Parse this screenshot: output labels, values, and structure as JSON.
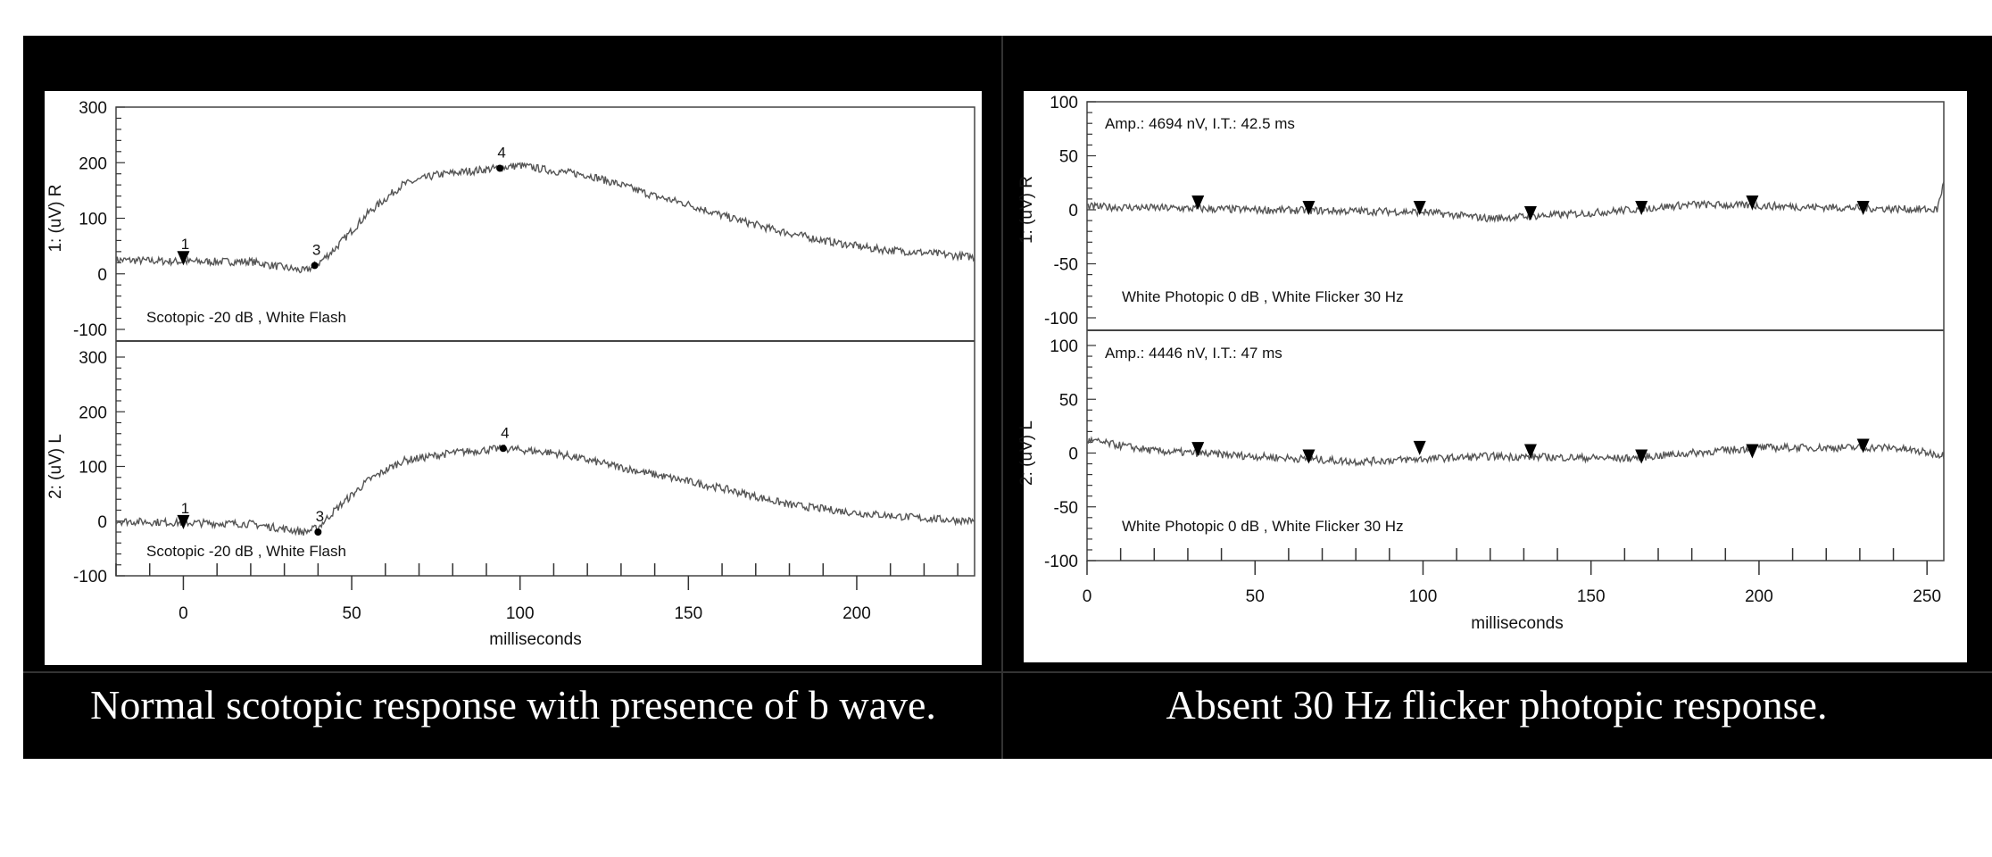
{
  "colors": {
    "frame": "#000000",
    "plot_bg": "#ffffff",
    "trace": "#555555",
    "axis": "#333333",
    "caption": "#ffffff"
  },
  "chart_data": [
    {
      "type": "line",
      "caption": "Normal scotopic response with presence of b wave.",
      "xlabel": "milliseconds",
      "xlim": [
        -20,
        235
      ],
      "xticks": [
        0,
        50,
        100,
        150,
        200
      ],
      "panels": [
        {
          "ylabel": "1:  (uV)  R",
          "ylim": [
            -100,
            300
          ],
          "yticks": [
            300,
            200,
            100,
            0,
            -100
          ],
          "note": "Scotopic   -20 dB , White Flash",
          "trace": {
            "x": [
              -20,
              0,
              20,
              36,
              40,
              45,
              55,
              65,
              75,
              90,
              100,
              110,
              120,
              130,
              140,
              150,
              160,
              175,
              190,
              205,
              220,
              235
            ],
            "y": [
              25,
              22,
              22,
              5,
              18,
              45,
              110,
              160,
              178,
              188,
              195,
              185,
              178,
              160,
              140,
              125,
              105,
              80,
              60,
              45,
              38,
              30
            ]
          },
          "markers": [
            {
              "label": "1",
              "x": 0,
              "y": 25,
              "shape": "triangle"
            },
            {
              "label": "3",
              "x": 39,
              "y": 15,
              "shape": "dot"
            },
            {
              "label": "4",
              "x": 94,
              "y": 190,
              "shape": "dot"
            }
          ]
        },
        {
          "ylabel": "2:  (uV)  L",
          "ylim": [
            -100,
            300
          ],
          "yticks": [
            300,
            200,
            100,
            0,
            -100
          ],
          "note": "Scotopic   -20 dB , White Flash",
          "trace": {
            "x": [
              -20,
              0,
              20,
              36,
              40,
              45,
              55,
              65,
              80,
              95,
              110,
              125,
              140,
              160,
              180,
              200,
              220,
              235
            ],
            "y": [
              0,
              -3,
              -5,
              -20,
              -12,
              20,
              75,
              110,
              125,
              133,
              125,
              105,
              85,
              60,
              30,
              15,
              5,
              0
            ]
          },
          "markers": [
            {
              "label": "1",
              "x": 0,
              "y": -5,
              "shape": "triangle"
            },
            {
              "label": "3",
              "x": 40,
              "y": -20,
              "shape": "dot"
            },
            {
              "label": "4",
              "x": 95,
              "y": 133,
              "shape": "dot"
            }
          ]
        }
      ]
    },
    {
      "type": "line",
      "caption": "Absent 30 Hz flicker photopic response.",
      "xlabel": "milliseconds",
      "xlim": [
        0,
        255
      ],
      "xticks": [
        0,
        50,
        100,
        150,
        200,
        250
      ],
      "panels": [
        {
          "ylabel": "1:  (uV)  R",
          "ylim": [
            -100,
            100
          ],
          "yticks": [
            100,
            50,
            0,
            -50,
            -100
          ],
          "amp": "Amp.: 4694 nV, I.T.: 42.5 ms",
          "note": "White Photopic   0 dB , White Flicker 30 Hz",
          "trace": {
            "x": [
              0,
              50,
              100,
              120,
              150,
              180,
              210,
              253,
              255
            ],
            "y": [
              3,
              0,
              -2,
              -8,
              -3,
              5,
              3,
              0,
              25
            ]
          },
          "markers": [
            {
              "x": 33,
              "y": 5
            },
            {
              "x": 66,
              "y": 0
            },
            {
              "x": 99,
              "y": 0
            },
            {
              "x": 132,
              "y": -5
            },
            {
              "x": 165,
              "y": 0
            },
            {
              "x": 198,
              "y": 5
            },
            {
              "x": 231,
              "y": 0
            }
          ]
        },
        {
          "ylabel": "2:  (uV)  L",
          "ylim": [
            -100,
            100
          ],
          "yticks": [
            100,
            50,
            0,
            -50,
            -100
          ],
          "amp": "Amp.: 4446 nV, I.T.: 47 ms",
          "note": "White Photopic   0 dB , White Flicker 30 Hz",
          "trace": {
            "x": [
              0,
              20,
              80,
              120,
              160,
              200,
              240,
              255
            ],
            "y": [
              12,
              2,
              -8,
              -3,
              -5,
              5,
              5,
              -2
            ]
          },
          "markers": [
            {
              "x": 33,
              "y": 2
            },
            {
              "x": 66,
              "y": -5
            },
            {
              "x": 99,
              "y": 3
            },
            {
              "x": 132,
              "y": 0
            },
            {
              "x": 165,
              "y": -5
            },
            {
              "x": 198,
              "y": 0
            },
            {
              "x": 231,
              "y": 5
            }
          ]
        }
      ]
    }
  ]
}
